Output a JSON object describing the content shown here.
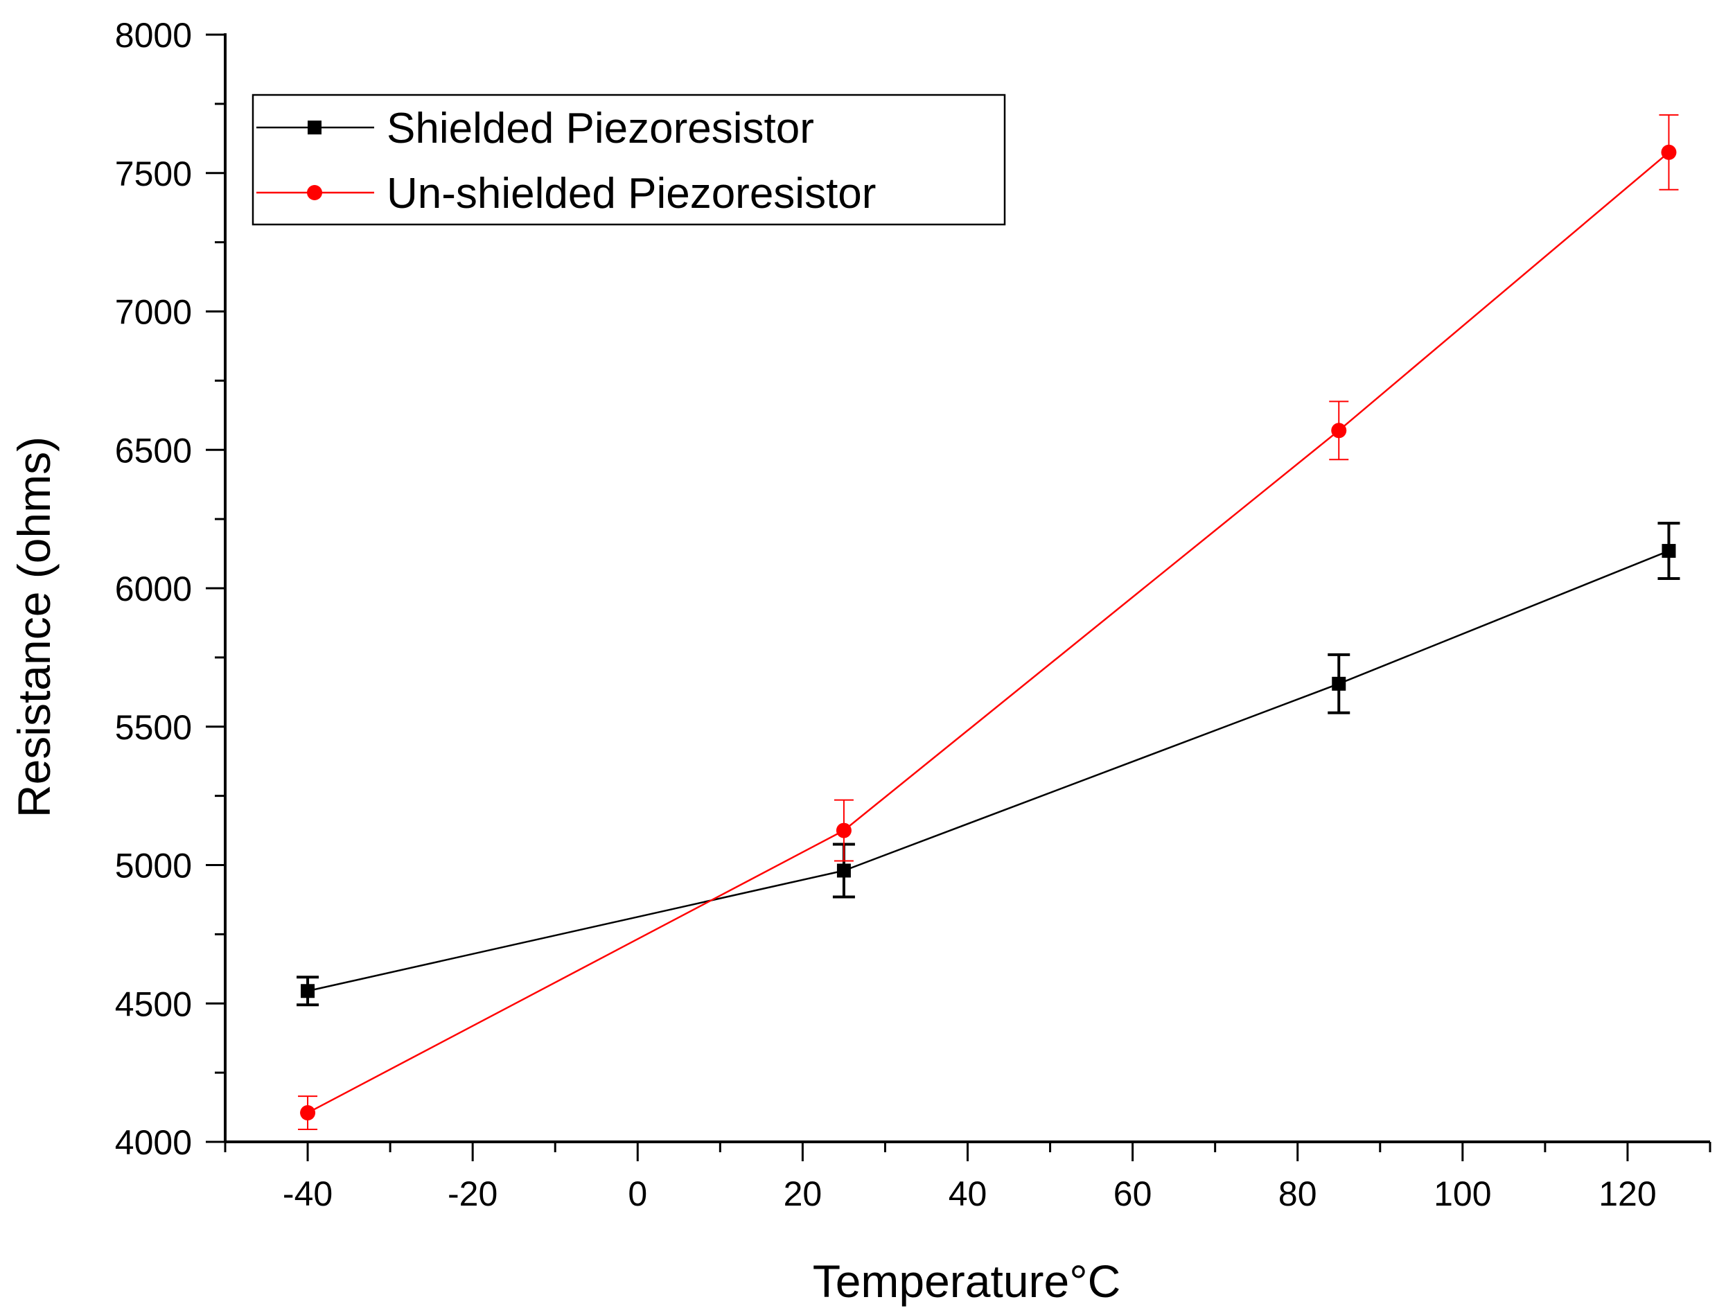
{
  "chart_data": {
    "type": "line",
    "title": "",
    "xlabel": "Temperature°C",
    "ylabel": "Resistance (ohms)",
    "xlim": [
      -50,
      130
    ],
    "ylim": [
      4000,
      8000
    ],
    "x_major_ticks": [
      -40,
      -20,
      0,
      20,
      40,
      60,
      80,
      100,
      120
    ],
    "x_minor_ticks": [
      -50,
      -30,
      -10,
      10,
      30,
      50,
      70,
      90,
      110,
      130
    ],
    "x_tick_labels": [
      "-40",
      "-20",
      "0",
      "20",
      "40",
      "60",
      "80",
      "100",
      "120"
    ],
    "y_major_ticks": [
      4000,
      4500,
      5000,
      5500,
      6000,
      6500,
      7000,
      7500,
      8000
    ],
    "y_minor_ticks": [
      4250,
      4750,
      5250,
      5750,
      6250,
      6750,
      7250,
      7750
    ],
    "y_tick_labels": [
      "4000",
      "4500",
      "5000",
      "5500",
      "6000",
      "6500",
      "7000",
      "7500",
      "8000"
    ],
    "grid": false,
    "legend_position": "top-left",
    "series": [
      {
        "name": "Shielded Piezoresistor",
        "color": "#000000",
        "marker": "square",
        "x": [
          -40,
          25,
          85,
          125
        ],
        "y": [
          4545,
          4980,
          5655,
          6135
        ],
        "yerr": [
          50,
          95,
          105,
          100
        ]
      },
      {
        "name": "Un-shielded Piezoresistor",
        "color": "#ff0000",
        "marker": "circle",
        "x": [
          -40,
          25,
          85,
          125
        ],
        "y": [
          4105,
          5125,
          6570,
          7575
        ],
        "yerr": [
          60,
          110,
          105,
          135
        ]
      }
    ]
  }
}
